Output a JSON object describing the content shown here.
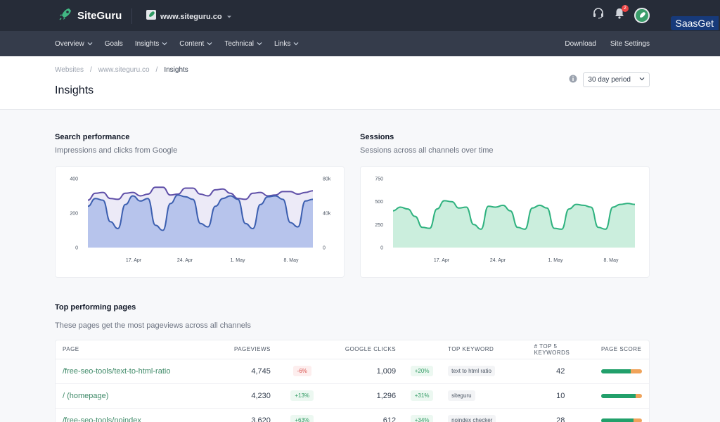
{
  "topbar": {
    "brand": "SiteGuru",
    "site": "www.siteguru.co",
    "notification_count": "2",
    "watermark": "SaasGet",
    "icons": [
      "rocket-icon",
      "headset-icon",
      "bell-icon",
      "avatar-icon"
    ]
  },
  "nav": {
    "left": [
      {
        "label": "Overview",
        "dropdown": true
      },
      {
        "label": "Goals",
        "dropdown": false
      },
      {
        "label": "Insights",
        "dropdown": true
      },
      {
        "label": "Content",
        "dropdown": true
      },
      {
        "label": "Technical",
        "dropdown": true
      },
      {
        "label": "Links",
        "dropdown": true
      }
    ],
    "right": [
      {
        "label": "Download"
      },
      {
        "label": "Site Settings"
      }
    ]
  },
  "breadcrumb": [
    "Websites",
    "www.siteguru.co",
    "Insights"
  ],
  "page_title": "Insights",
  "period": {
    "selected": "30 day period"
  },
  "search_section": {
    "title": "Search performance",
    "subtitle": "Impressions and clicks from Google"
  },
  "sessions_section": {
    "title": "Sessions",
    "subtitle": "Sessions across all channels over time"
  },
  "chart_data": [
    {
      "type": "area",
      "x_ticks": [
        "17. Apr",
        "24. Apr",
        "1. May",
        "8. May"
      ],
      "y_left_ticks": [
        "0",
        "200",
        "400"
      ],
      "y_right_ticks": [
        "0",
        "40k",
        "80k"
      ],
      "ylim_left": [
        0,
        400
      ],
      "ylim_right": [
        0,
        80000
      ],
      "grid": false,
      "colors": {
        "impressions": "#5f4fa8",
        "clicks": "#3c5fb0",
        "clicks_fill": "#b7c4ec",
        "impressions_fill": "#eceaf7"
      },
      "series": [
        {
          "axis": "right",
          "values": [
            55000,
            63000,
            64000,
            57000,
            56000,
            63000,
            64000,
            60000,
            62000,
            70000,
            70000,
            61000,
            62000,
            69000,
            69000,
            62000,
            60000,
            67000,
            68000,
            63000,
            57000,
            56000,
            63000,
            64000,
            60000,
            61000,
            65000,
            65000,
            62000,
            64000,
            66000
          ]
        },
        {
          "axis": "left",
          "values": [
            240,
            285,
            275,
            150,
            110,
            250,
            300,
            270,
            285,
            130,
            100,
            255,
            305,
            295,
            280,
            140,
            120,
            240,
            285,
            300,
            280,
            140,
            110,
            250,
            295,
            300,
            280,
            145,
            120,
            270,
            280
          ]
        }
      ]
    },
    {
      "type": "area",
      "x_ticks": [
        "17. Apr",
        "24. Apr",
        "1. May",
        "8. May"
      ],
      "y_ticks": [
        "0",
        "250",
        "500",
        "750"
      ],
      "ylim": [
        0,
        750
      ],
      "grid": false,
      "colors": {
        "line": "#2fb27f",
        "fill": "#cbeedd"
      },
      "series": [
        {
          "values": [
            400,
            440,
            420,
            340,
            220,
            210,
            420,
            510,
            500,
            430,
            440,
            250,
            200,
            450,
            440,
            460,
            400,
            220,
            200,
            430,
            460,
            430,
            210,
            200,
            420,
            470,
            460,
            440,
            220,
            200,
            440,
            470,
            480,
            470
          ]
        }
      ]
    }
  ],
  "top_pages": {
    "title": "Top performing pages",
    "subtitle": "These pages get the most pageviews across all channels",
    "columns": [
      "PAGE",
      "PAGEVIEWS",
      "GOOGLE CLICKS",
      "TOP KEYWORD",
      "# TOP 5 KEYWORDS",
      "PAGE SCORE"
    ],
    "rows": [
      {
        "page": "/free-seo-tools/text-to-html-ratio",
        "pageviews": "4,745",
        "pv_change": "-6%",
        "pv_dir": "down",
        "clicks": "1,009",
        "cl_change": "+20%",
        "cl_dir": "up",
        "keyword": "text to html ratio",
        "top5": "42",
        "score": 0.72
      },
      {
        "page": "/ (homepage)",
        "pageviews": "4,230",
        "pv_change": "+13%",
        "pv_dir": "up",
        "clicks": "1,296",
        "cl_change": "+31%",
        "cl_dir": "up",
        "keyword": "siteguru",
        "top5": "10",
        "score": 0.85
      },
      {
        "page": "/free-seo-tools/noindex",
        "pageviews": "3,620",
        "pv_change": "+63%",
        "pv_dir": "up",
        "clicks": "612",
        "cl_change": "+34%",
        "cl_dir": "up",
        "keyword": "noindex checker",
        "top5": "28",
        "score": 0.8
      }
    ]
  }
}
